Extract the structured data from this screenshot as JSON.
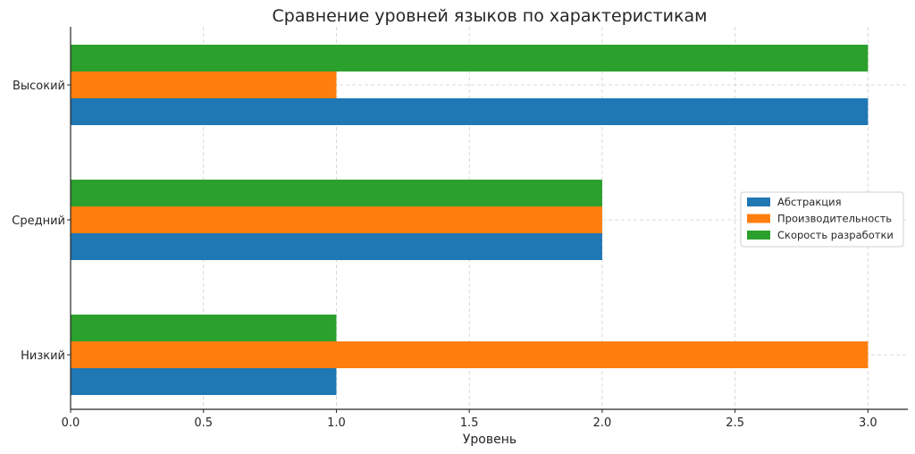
{
  "chart_data": {
    "type": "bar",
    "orientation": "horizontal",
    "title": "Сравнение уровней языков по характеристикам",
    "xlabel": "Уровень",
    "ylabel": "",
    "categories": [
      "Низкий",
      "Средний",
      "Высокий"
    ],
    "series": [
      {
        "name": "Абстракция",
        "values": [
          1,
          2,
          3
        ],
        "color": "#1f77b4"
      },
      {
        "name": "Производительность",
        "values": [
          3,
          2,
          1
        ],
        "color": "#ff7f0e"
      },
      {
        "name": "Скорость разработки",
        "values": [
          1,
          2,
          3
        ],
        "color": "#2ca02c"
      }
    ],
    "xlim": [
      0,
      3.15
    ],
    "xticks": [
      "0.0",
      "0.5",
      "1.0",
      "1.5",
      "2.0",
      "2.5",
      "3.0"
    ],
    "grid": true,
    "legend_position": "right"
  }
}
